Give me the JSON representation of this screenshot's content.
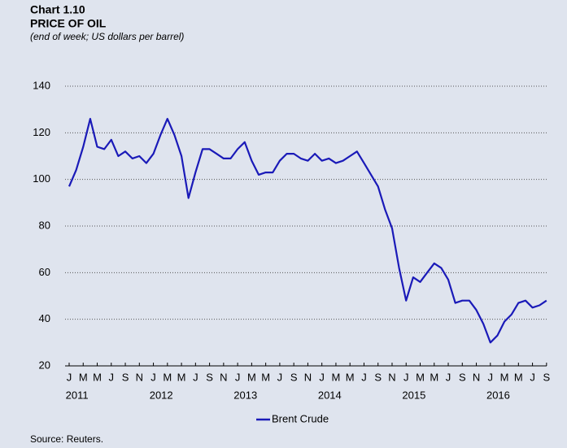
{
  "chart_data": {
    "type": "line",
    "title": "Chart 1.10",
    "subtitle": "PRICE OF OIL",
    "note": "(end of week; US dollars per barrel)",
    "source": "Source: Reuters.",
    "x": [
      "2011-01",
      "2011-02",
      "2011-03",
      "2011-04",
      "2011-05",
      "2011-06",
      "2011-07",
      "2011-08",
      "2011-09",
      "2011-10",
      "2011-11",
      "2011-12",
      "2012-01",
      "2012-02",
      "2012-03",
      "2012-04",
      "2012-05",
      "2012-06",
      "2012-07",
      "2012-08",
      "2012-09",
      "2012-10",
      "2012-11",
      "2012-12",
      "2013-01",
      "2013-02",
      "2013-03",
      "2013-04",
      "2013-05",
      "2013-06",
      "2013-07",
      "2013-08",
      "2013-09",
      "2013-10",
      "2013-11",
      "2013-12",
      "2014-01",
      "2014-02",
      "2014-03",
      "2014-04",
      "2014-05",
      "2014-06",
      "2014-07",
      "2014-08",
      "2014-09",
      "2014-10",
      "2014-11",
      "2014-12",
      "2015-01",
      "2015-02",
      "2015-03",
      "2015-04",
      "2015-05",
      "2015-06",
      "2015-07",
      "2015-08",
      "2015-09",
      "2015-10",
      "2015-11",
      "2015-12",
      "2016-01",
      "2016-02",
      "2016-03",
      "2016-04",
      "2016-05",
      "2016-06",
      "2016-07",
      "2016-08",
      "2016-09"
    ],
    "series": [
      {
        "name": "Brent Crude",
        "color": "#1a1ab8",
        "values": [
          97,
          104,
          114,
          126,
          114,
          113,
          117,
          110,
          112,
          109,
          110,
          107,
          111,
          119,
          126,
          119,
          110,
          92,
          103,
          113,
          113,
          111,
          109,
          109,
          113,
          116,
          108,
          102,
          103,
          103,
          108,
          111,
          111,
          109,
          108,
          111,
          108,
          109,
          107,
          108,
          110,
          112,
          107,
          102,
          97,
          87,
          79,
          62,
          48,
          58,
          56,
          60,
          64,
          62,
          57,
          47,
          48,
          48,
          44,
          38,
          30,
          33,
          39,
          42,
          47,
          48,
          45,
          46,
          48
        ]
      }
    ],
    "xticks": [
      {
        "value": "2011-01",
        "label": "J"
      },
      {
        "value": "2011-03",
        "label": "M"
      },
      {
        "value": "2011-05",
        "label": "M"
      },
      {
        "value": "2011-07",
        "label": "J"
      },
      {
        "value": "2011-09",
        "label": "S"
      },
      {
        "value": "2011-11",
        "label": "N"
      },
      {
        "value": "2012-01",
        "label": "J"
      },
      {
        "value": "2012-03",
        "label": "M"
      },
      {
        "value": "2012-05",
        "label": "M"
      },
      {
        "value": "2012-07",
        "label": "J"
      },
      {
        "value": "2012-09",
        "label": "S"
      },
      {
        "value": "2012-11",
        "label": "N"
      },
      {
        "value": "2013-01",
        "label": "J"
      },
      {
        "value": "2013-03",
        "label": "M"
      },
      {
        "value": "2013-05",
        "label": "M"
      },
      {
        "value": "2013-07",
        "label": "J"
      },
      {
        "value": "2013-09",
        "label": "S"
      },
      {
        "value": "2013-11",
        "label": "N"
      },
      {
        "value": "2014-01",
        "label": "J"
      },
      {
        "value": "2014-03",
        "label": "M"
      },
      {
        "value": "2014-05",
        "label": "M"
      },
      {
        "value": "2014-07",
        "label": "J"
      },
      {
        "value": "2014-09",
        "label": "S"
      },
      {
        "value": "2014-11",
        "label": "N"
      },
      {
        "value": "2015-01",
        "label": "J"
      },
      {
        "value": "2015-03",
        "label": "M"
      },
      {
        "value": "2015-05",
        "label": "M"
      },
      {
        "value": "2015-07",
        "label": "J"
      },
      {
        "value": "2015-09",
        "label": "S"
      },
      {
        "value": "2015-11",
        "label": "N"
      },
      {
        "value": "2016-01",
        "label": "J"
      },
      {
        "value": "2016-03",
        "label": "M"
      },
      {
        "value": "2016-05",
        "label": "M"
      },
      {
        "value": "2016-07",
        "label": "J"
      },
      {
        "value": "2016-09",
        "label": "S"
      }
    ],
    "years": [
      {
        "value": "2011-02",
        "label": "2011"
      },
      {
        "value": "2012-02",
        "label": "2012"
      },
      {
        "value": "2013-02",
        "label": "2013"
      },
      {
        "value": "2014-02",
        "label": "2014"
      },
      {
        "value": "2015-02",
        "label": "2015"
      },
      {
        "value": "2016-02",
        "label": "2016"
      }
    ],
    "ylim": [
      20,
      140
    ],
    "yticks": [
      20,
      40,
      60,
      80,
      100,
      120,
      140
    ],
    "grid": true,
    "legend": "bottom"
  }
}
